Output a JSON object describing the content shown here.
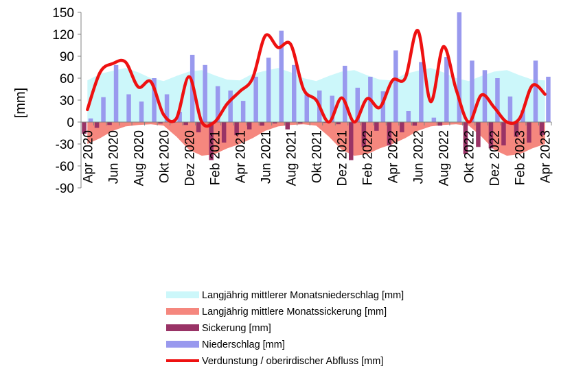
{
  "chart_data": {
    "type": "bar",
    "ylabel": "[mm]",
    "ylim": [
      -90,
      150
    ],
    "yticks": [
      150,
      120,
      90,
      60,
      30,
      0,
      -30,
      -60,
      -90
    ],
    "ytick_labels": [
      "150",
      "120",
      "90",
      "60",
      "30",
      "0",
      "-30",
      "-60",
      "-90"
    ],
    "categories": [
      "Apr 2020",
      "Mai 2020",
      "Jun 2020",
      "Jul 2020",
      "Aug 2020",
      "Sep 2020",
      "Okt 2020",
      "Nov 2020",
      "Dez 2020",
      "Jan 2021",
      "Feb 2021",
      "Mrz 2021",
      "Apr 2021",
      "Mai 2021",
      "Jun 2021",
      "Jul 2021",
      "Aug 2021",
      "Sep 2021",
      "Okt 2021",
      "Nov 2021",
      "Dez 2021",
      "Jan 2022",
      "Feb 2022",
      "Mrz 2022",
      "Apr 2022",
      "Mai 2022",
      "Jun 2022",
      "Jul 2022",
      "Aug 2022",
      "Sep 2022",
      "Okt 2022",
      "Nov 2022",
      "Dez 2022",
      "Jan 2023",
      "Feb 2023",
      "Mrz 2023",
      "Apr 2023"
    ],
    "xtick_labels": [
      "Apr 2020",
      "Jun 2020",
      "Aug 2020",
      "Okt 2020",
      "Dez 2020",
      "Feb 2021",
      "Apr 2021",
      "Jun 2021",
      "Aug 2021",
      "Okt 2021",
      "Dez 2021",
      "Feb 2022",
      "Apr 2022",
      "Jun 2022",
      "Aug 2022",
      "Okt 2022",
      "Dez 2022",
      "Feb 2023",
      "Apr 2023"
    ],
    "colors": {
      "mean_precip": "#ccf7fa",
      "mean_seepage": "#f5877e",
      "seepage": "#993366",
      "precip": "#9999ee",
      "evap": "#ee1111",
      "axis": "#808080"
    },
    "series": [
      {
        "name": "Langjährig mittlerer Monatsniederschlag [mm]",
        "type": "area",
        "values": [
          57,
          66,
          70,
          74,
          68,
          60,
          56,
          63,
          69,
          71,
          64,
          58,
          57,
          66,
          70,
          74,
          68,
          60,
          56,
          63,
          69,
          71,
          64,
          58,
          57,
          66,
          70,
          74,
          68,
          60,
          56,
          63,
          69,
          71,
          64,
          58,
          57
        ]
      },
      {
        "name": "Langjährig mittlere Monatssickerung [mm]",
        "type": "area",
        "values": [
          -30,
          -22,
          -12,
          -6,
          -4,
          -3,
          -5,
          -20,
          -38,
          -46,
          -44,
          -36,
          -30,
          -22,
          -12,
          -6,
          -4,
          -3,
          -5,
          -20,
          -38,
          -46,
          -44,
          -36,
          -30,
          -22,
          -12,
          -6,
          -4,
          -3,
          -5,
          -20,
          -38,
          -46,
          -44,
          -36,
          -30
        ]
      },
      {
        "name": "Sickerung [mm]",
        "type": "bar",
        "values": [
          -16,
          -8,
          -4,
          0,
          0,
          0,
          -2,
          -1,
          -4,
          -14,
          -52,
          -28,
          -18,
          -10,
          -5,
          -2,
          -10,
          -2,
          0,
          -1,
          -3,
          -52,
          -34,
          -12,
          -32,
          -14,
          -5,
          0,
          -5,
          0,
          -44,
          -34,
          -36,
          -32,
          -20,
          -28,
          -18
        ]
      },
      {
        "name": "Niederschlag [mm]",
        "type": "bar",
        "values": [
          5,
          34,
          78,
          38,
          28,
          60,
          38,
          14,
          92,
          78,
          49,
          43,
          29,
          62,
          88,
          125,
          78,
          38,
          43,
          36,
          77,
          47,
          62,
          42,
          98,
          15,
          82,
          6,
          89,
          150,
          84,
          71,
          60,
          35,
          16,
          84,
          62
        ]
      },
      {
        "name": "Verdunstung / oberirdischer Abfluss [mm]",
        "type": "line",
        "values": [
          17,
          68,
          80,
          82,
          48,
          55,
          10,
          5,
          62,
          0,
          0,
          25,
          42,
          60,
          118,
          102,
          106,
          45,
          30,
          0,
          33,
          0,
          32,
          20,
          57,
          60,
          125,
          28,
          103,
          45,
          0,
          37,
          20,
          0,
          5,
          50,
          38
        ]
      }
    ]
  }
}
